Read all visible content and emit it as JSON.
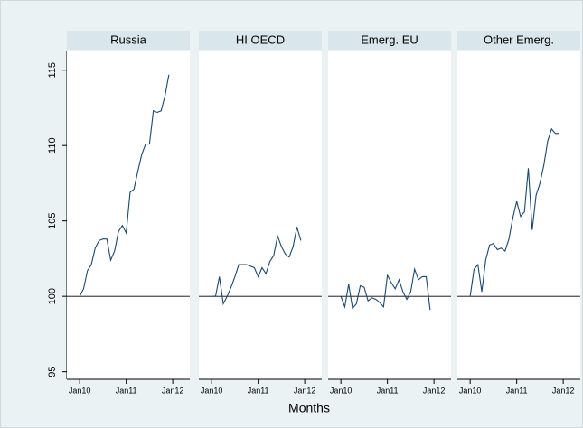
{
  "chart_data": {
    "type": "line",
    "xlabel": "Months",
    "x": [
      0,
      1,
      2,
      3,
      4,
      5,
      6,
      7,
      8,
      9,
      10,
      11,
      12,
      13,
      14,
      15,
      16,
      17,
      18,
      19,
      20,
      21,
      22,
      23
    ],
    "xlim": [
      -3.3,
      28.4
    ],
    "xticks": [
      {
        "value": 0,
        "label": "Jan10"
      },
      {
        "value": 12,
        "label": "Jan11"
      },
      {
        "value": 24,
        "label": "Jan12"
      }
    ],
    "ylim": [
      94.5,
      116.3
    ],
    "yticks": [
      95,
      100,
      105,
      110,
      115
    ],
    "hline": 100,
    "series": [
      {
        "name": "Russia",
        "color": "#1a476f",
        "values": [
          100,
          100.5,
          101.7,
          102.1,
          103.2,
          103.7,
          103.8,
          103.8,
          102.4,
          103.0,
          104.3,
          104.7,
          104.2,
          106.9,
          107.1,
          108.3,
          109.4,
          110.1,
          110.1,
          112.3,
          112.2,
          112.3,
          113.3,
          114.7
        ]
      },
      {
        "name": "HI OECD",
        "color": "#1a476f",
        "values": [
          100,
          100,
          101.3,
          99.5,
          100,
          100.6,
          101.3,
          102.1,
          102.1,
          102.1,
          102.0,
          101.9,
          101.3,
          101.9,
          101.5,
          102.3,
          102.7,
          104.0,
          103.3,
          102.8,
          102.6,
          103.3,
          104.6,
          103.7
        ]
      },
      {
        "name": "Emerg. EU",
        "color": "#1a476f",
        "values": [
          100,
          99.3,
          100.8,
          99.2,
          99.5,
          100.7,
          100.6,
          99.7,
          99.9,
          99.8,
          99.6,
          99.3,
          101.4,
          100.9,
          100.5,
          101.1,
          100.3,
          99.8,
          100.3,
          101.8,
          101.1,
          101.3,
          101.3,
          99.1
        ]
      },
      {
        "name": "Other Emerg.",
        "color": "#1a476f",
        "values": [
          100,
          101.8,
          102.1,
          100.3,
          102.4,
          103.4,
          103.5,
          103.1,
          103.2,
          103.0,
          103.8,
          105.2,
          106.3,
          105.3,
          105.6,
          108.5,
          104.4,
          106.7,
          107.5,
          108.7,
          110.3,
          111.1,
          110.8,
          110.8
        ]
      }
    ]
  }
}
